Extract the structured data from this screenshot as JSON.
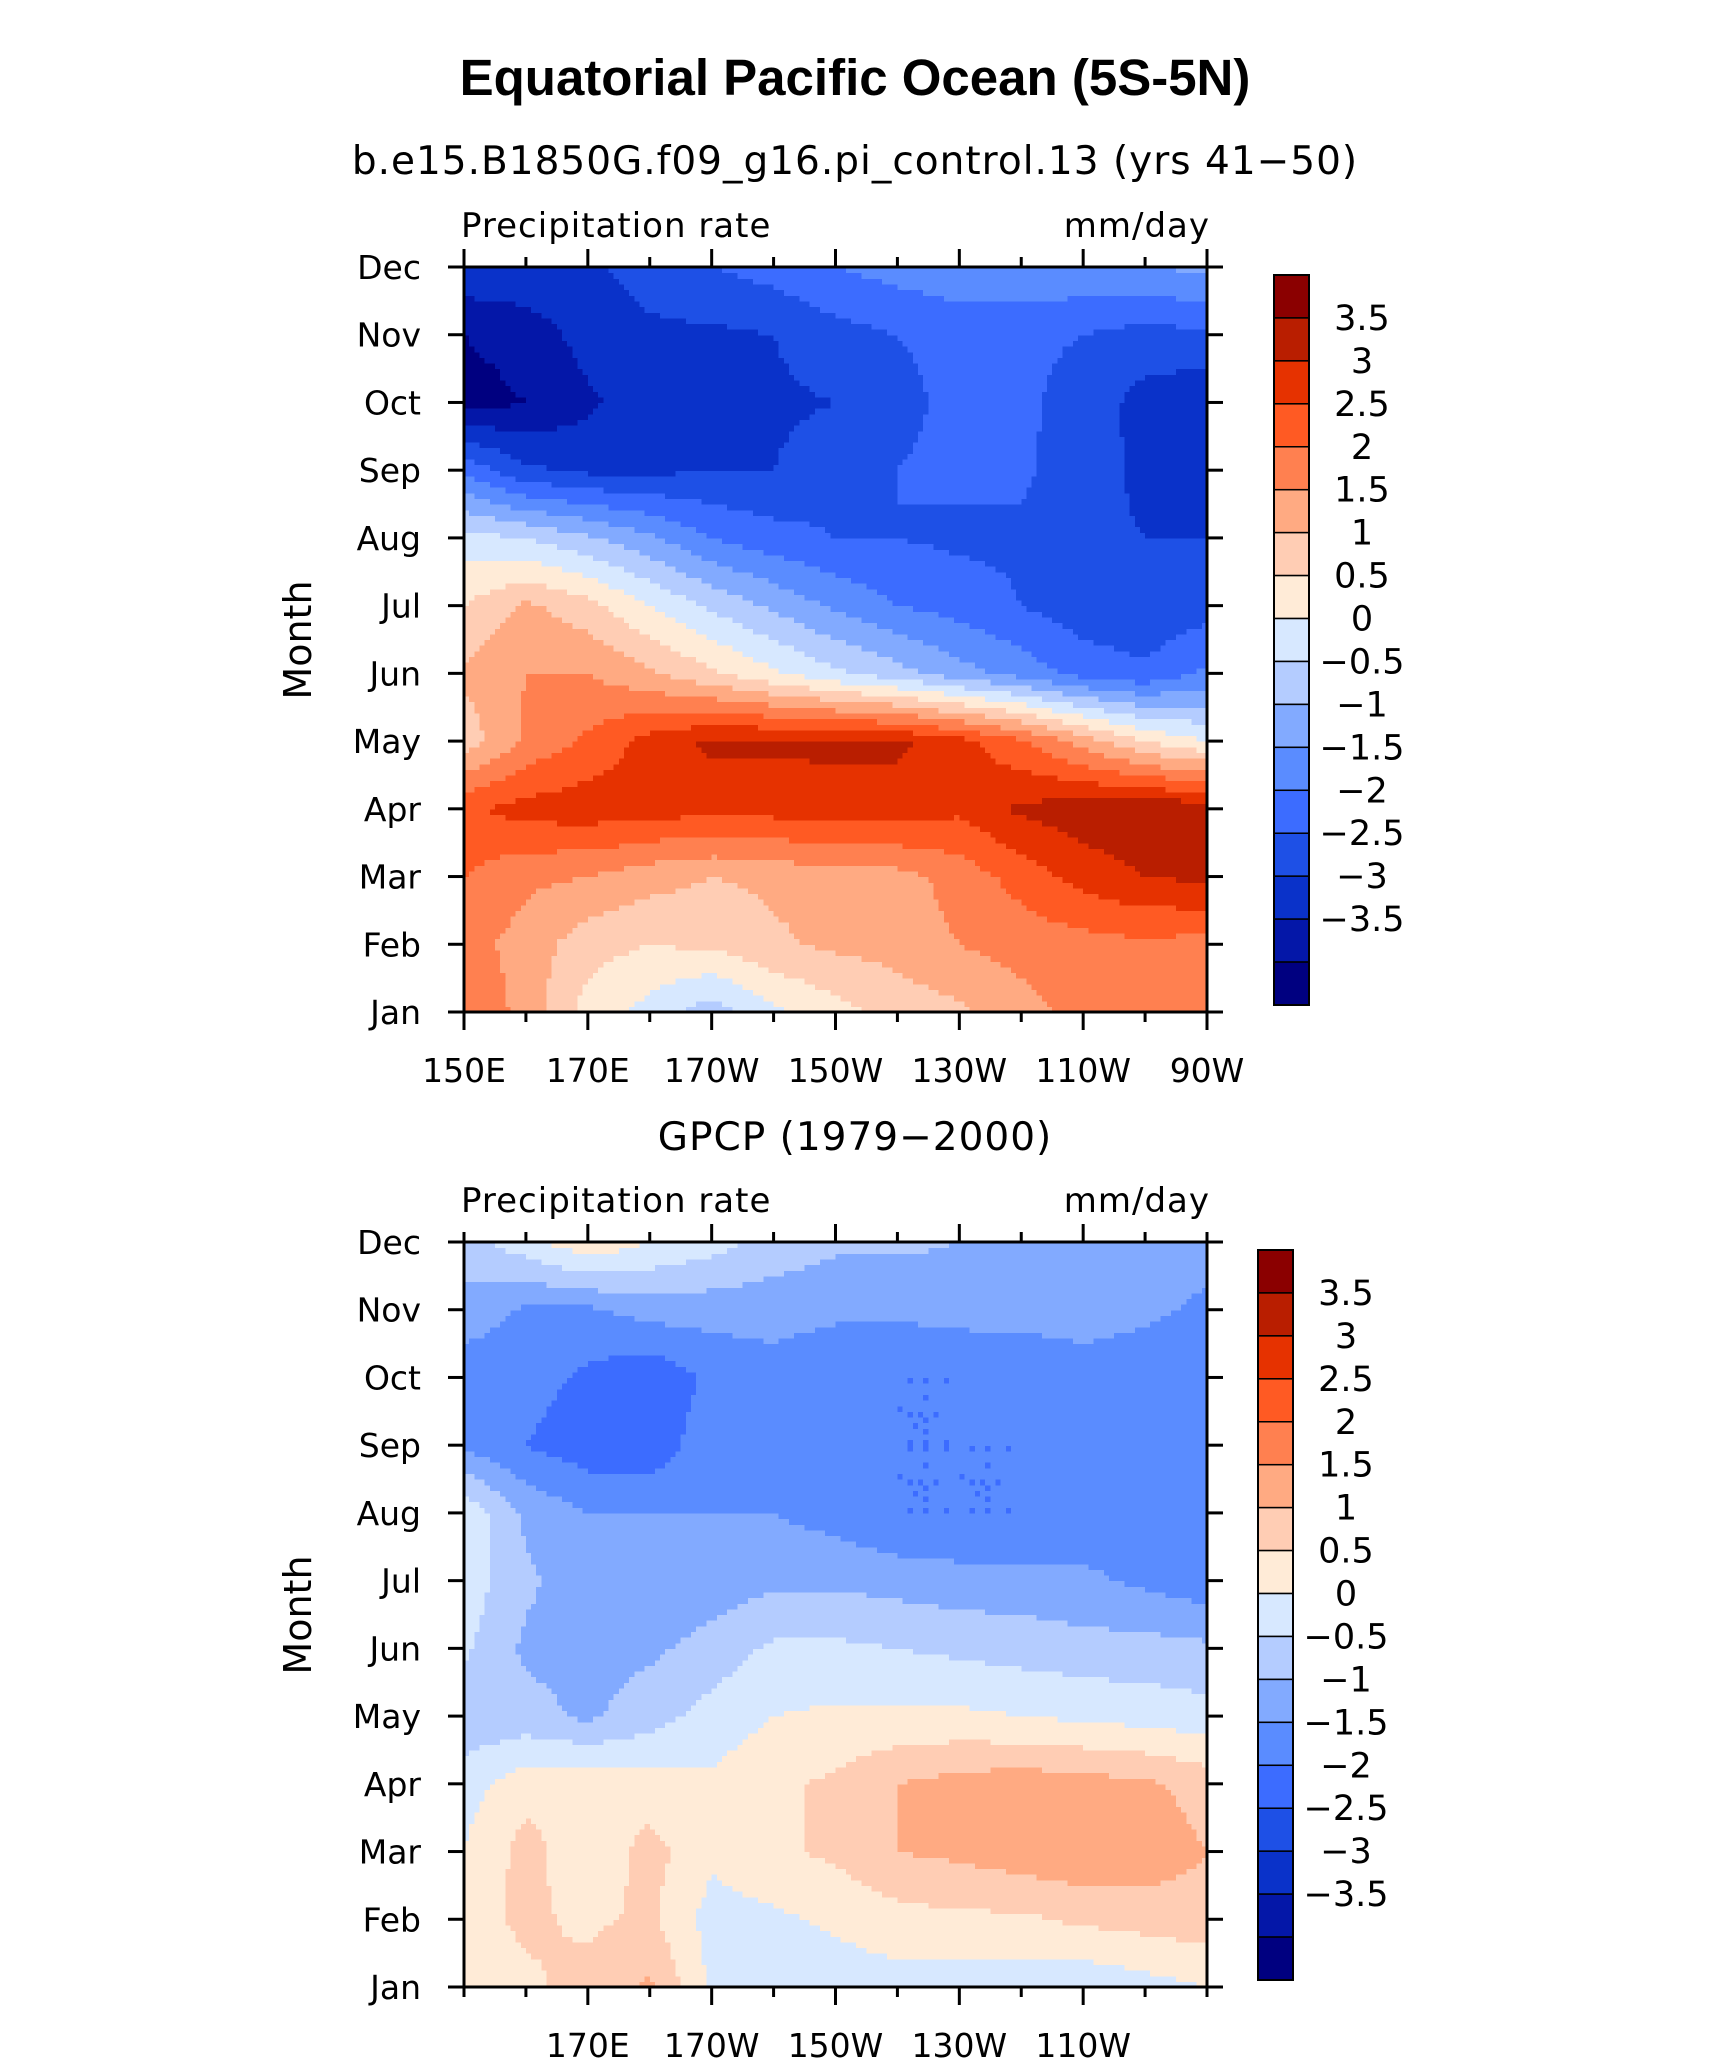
{
  "figure": {
    "title": "Equatorial Pacific Ocean (5S-5N)",
    "colors": {
      "levels": [
        "#000080",
        "#0417a8",
        "#0a32c9",
        "#1e50e6",
        "#3c6cff",
        "#5a8cff",
        "#82aaff",
        "#b4ccff",
        "#d7e8ff",
        "#ffebd7",
        "#ffcdb4",
        "#ffaa82",
        "#ff8050",
        "#ff5a23",
        "#e63200",
        "#b91e00",
        "#8b0000"
      ]
    }
  },
  "chart_data": [
    {
      "type": "heatmap",
      "subtitle": "b.e15.B1850G.f09_g16.pi_control.13 (yrs 41−50)",
      "left_label": "Precipitation rate",
      "right_label": "mm/day",
      "ylabel": "Month",
      "xlabel": "",
      "x": [
        150,
        160,
        170,
        180,
        190,
        200,
        210,
        220,
        230,
        240,
        250,
        260,
        270
      ],
      "x_ticks": [
        150,
        170,
        190,
        210,
        230,
        250,
        270
      ],
      "x_tick_labels": [
        "150E",
        "170E",
        "170W",
        "150W",
        "130W",
        "110W",
        "90W"
      ],
      "xlim": [
        150,
        270
      ],
      "y": [
        "Jan",
        "Feb",
        "Mar",
        "Apr",
        "May",
        "Jun",
        "Jul",
        "Aug",
        "Sep",
        "Oct",
        "Nov",
        "Dec"
      ],
      "y_tick_labels": [
        "Jan",
        "Feb",
        "Mar",
        "Apr",
        "May",
        "Jun",
        "Jul",
        "Aug",
        "Sep",
        "Oct",
        "Nov",
        "Dec"
      ],
      "colorbar_levels": [
        -3.5,
        -3,
        -2.5,
        -2,
        -1.5,
        -1,
        -0.5,
        0,
        0.5,
        1,
        1.5,
        2,
        2.5,
        3,
        3.5
      ],
      "colorbar_labels": [
        "3.5",
        "3",
        "2.5",
        "2",
        "1.5",
        "1",
        "0.5",
        "0",
        "−0.5",
        "−1",
        "−1.5",
        "−2",
        "−2.5",
        "−3",
        "−3.5"
      ],
      "z": [
        [
          2.5,
          1.8,
          0.8,
          0.3,
          -0.3,
          0.4,
          0.8,
          1.2,
          1.4,
          1.8,
          2.2,
          2.3,
          2.5
        ],
        [
          2.2,
          1.8,
          1.2,
          1.0,
          1.1,
          1.4,
          1.6,
          1.7,
          2.0,
          2.2,
          2.3,
          2.4,
          2.3
        ],
        [
          2.5,
          2.1,
          2.0,
          1.7,
          1.5,
          1.6,
          1.8,
          1.8,
          2.2,
          2.7,
          3.2,
          3.5,
          3.6
        ],
        [
          2.9,
          3.2,
          3.3,
          3.2,
          3.2,
          3.2,
          3.3,
          3.3,
          3.1,
          3.6,
          3.8,
          3.9,
          3.9
        ],
        [
          1.2,
          2.1,
          2.6,
          3.2,
          3.6,
          3.6,
          3.6,
          3.6,
          3.2,
          2.6,
          1.8,
          1.0,
          0.5
        ],
        [
          1.6,
          2.0,
          2.0,
          1.6,
          1.1,
          0.6,
          0.1,
          -0.3,
          -0.8,
          -1.2,
          -1.7,
          -1.9,
          -1.4
        ],
        [
          1.0,
          1.6,
          1.2,
          0.5,
          -0.1,
          -0.6,
          -1.1,
          -1.5,
          -1.7,
          -2.0,
          -2.3,
          -2.4,
          -2.2
        ],
        [
          0.2,
          0.0,
          -0.4,
          -0.9,
          -1.5,
          -1.8,
          -2.0,
          -2.0,
          -2.1,
          -2.1,
          -2.4,
          -2.5,
          -2.5
        ],
        [
          -1.6,
          -2.4,
          -2.6,
          -2.6,
          -2.5,
          -2.5,
          -2.2,
          -2.0,
          -1.9,
          -1.9,
          -2.3,
          -2.6,
          -2.7
        ],
        [
          -3.7,
          -3.5,
          -3.1,
          -2.7,
          -2.5,
          -2.6,
          -2.5,
          -2.1,
          -1.9,
          -1.9,
          -2.2,
          -2.7,
          -2.9
        ],
        [
          -3.5,
          -3.3,
          -2.8,
          -2.6,
          -2.6,
          -2.5,
          -2.2,
          -2.0,
          -1.9,
          -1.9,
          -2.0,
          -2.2,
          -2.1
        ],
        [
          -2.6,
          -2.6,
          -2.6,
          -2.3,
          -2.0,
          -1.8,
          -1.5,
          -1.3,
          -1.1,
          -1.1,
          -1.1,
          -1.0,
          -0.9
        ]
      ]
    },
    {
      "type": "heatmap",
      "subtitle": "GPCP (1979−2000)",
      "left_label": "Precipitation rate",
      "right_label": "mm/day",
      "ylabel": "Month",
      "xlabel": "",
      "x": [
        150,
        160,
        170,
        180,
        190,
        200,
        210,
        220,
        230,
        240,
        250,
        260,
        270
      ],
      "x_ticks": [
        170,
        190,
        210,
        230,
        250
      ],
      "x_tick_labels": [
        "170E",
        "170W",
        "150W",
        "130W",
        "110W"
      ],
      "xlim": [
        150,
        270
      ],
      "y": [
        "Jan",
        "Feb",
        "Mar",
        "Apr",
        "May",
        "Jun",
        "Jul",
        "Aug",
        "Sep",
        "Oct",
        "Nov",
        "Dec"
      ],
      "y_tick_labels": [
        "Jan",
        "Feb",
        "Mar",
        "Apr",
        "May",
        "Jun",
        "Jul",
        "Aug",
        "Sep",
        "Oct",
        "Nov",
        "Dec"
      ],
      "colorbar_levels": [
        -3.5,
        -3,
        -2.5,
        -2,
        -1.5,
        -1,
        -0.5,
        0,
        0.5,
        1,
        1.5,
        2,
        2.5,
        3,
        3.5
      ],
      "colorbar_labels": [
        "3.5",
        "3",
        "2.5",
        "2",
        "1.5",
        "1",
        "0.5",
        "0",
        "−0.5",
        "−1",
        "−1.5",
        "−2",
        "−2.5",
        "−3",
        "−3.5"
      ],
      "z": [
        [
          0.6,
          0.9,
          1.2,
          1.6,
          0.4,
          0.2,
          0.2,
          0.3,
          0.2,
          0.2,
          0.1,
          0.3,
          0.5
        ],
        [
          0.8,
          1.1,
          0.9,
          1.1,
          0.3,
          0.4,
          0.6,
          0.8,
          0.9,
          0.9,
          1.1,
          1.2,
          1.3
        ],
        [
          0.5,
          1.2,
          0.6,
          1.2,
          0.6,
          0.9,
          1.1,
          1.5,
          1.6,
          1.8,
          1.9,
          1.8,
          1.5
        ],
        [
          0.3,
          0.8,
          0.9,
          0.7,
          0.6,
          0.9,
          1.1,
          1.5,
          1.7,
          1.8,
          1.7,
          1.6,
          1.3
        ],
        [
          -0.4,
          -0.3,
          -0.6,
          -0.2,
          0.2,
          0.5,
          0.6,
          0.6,
          0.6,
          0.5,
          0.4,
          0.3,
          0.2
        ],
        [
          0.1,
          -0.6,
          -0.7,
          -0.6,
          -0.3,
          0.1,
          0.1,
          0.0,
          -0.1,
          -0.2,
          -0.3,
          -0.3,
          -0.4
        ],
        [
          0.3,
          -0.4,
          -0.8,
          -0.9,
          -0.8,
          -0.6,
          -0.6,
          -0.7,
          -0.8,
          -0.8,
          -0.9,
          -1.1,
          -1.3
        ],
        [
          0.4,
          -0.6,
          -1.0,
          -1.0,
          -1.0,
          -1.0,
          -1.2,
          -1.5,
          -1.5,
          -1.5,
          -1.3,
          -1.2,
          -1.0
        ],
        [
          -1.1,
          -1.5,
          -1.8,
          -1.9,
          -1.1,
          -1.1,
          -1.4,
          -1.5,
          -1.5,
          -1.5,
          -1.2,
          -1.1,
          -1.3
        ],
        [
          -1.3,
          -1.3,
          -1.6,
          -1.9,
          -1.4,
          -1.2,
          -1.4,
          -1.5,
          -1.5,
          -1.4,
          -1.2,
          -1.3,
          -1.4
        ],
        [
          -0.7,
          -1.1,
          -1.1,
          -0.8,
          -0.8,
          -0.8,
          -0.9,
          -0.9,
          -0.8,
          -0.8,
          -0.8,
          -0.9,
          -1.1
        ],
        [
          -0.2,
          0.3,
          0.9,
          0.5,
          0.2,
          -0.2,
          -0.4,
          -0.4,
          -0.5,
          -0.6,
          -0.6,
          -0.7,
          -0.8
        ]
      ]
    }
  ]
}
